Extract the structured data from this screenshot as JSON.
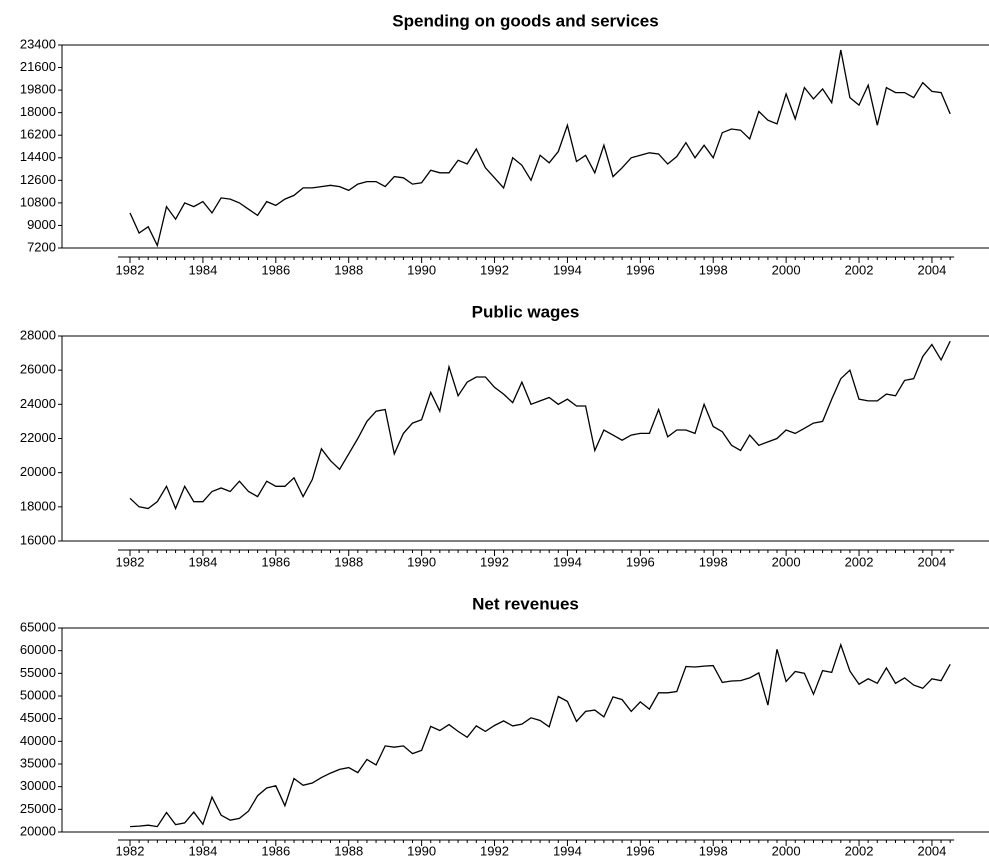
{
  "chart_data": [
    {
      "type": "line",
      "title": "Spending on goods and services",
      "color": "#000000",
      "categories": [
        "1982",
        null,
        null,
        null,
        null,
        null,
        null,
        null,
        "1984",
        null,
        null,
        null,
        null,
        null,
        null,
        null,
        "1986",
        null,
        null,
        null,
        null,
        null,
        null,
        null,
        "1988",
        null,
        null,
        null,
        null,
        null,
        null,
        null,
        "1990",
        null,
        null,
        null,
        null,
        null,
        null,
        null,
        "1992",
        null,
        null,
        null,
        null,
        null,
        null,
        null,
        "1994",
        null,
        null,
        null,
        null,
        null,
        null,
        null,
        "1996",
        null,
        null,
        null,
        null,
        null,
        null,
        null,
        "1998",
        null,
        null,
        null,
        null,
        null,
        null,
        null,
        "2000",
        null,
        null,
        null,
        null,
        null,
        null,
        null,
        "2002",
        null,
        null,
        null,
        null,
        null,
        null,
        null,
        "2004",
        null,
        null
      ],
      "values": [
        10000,
        8400,
        8900,
        7400,
        10500,
        9500,
        10800,
        10500,
        10900,
        10000,
        11200,
        11100,
        10800,
        10300,
        9800,
        10900,
        10600,
        11100,
        11400,
        12000,
        12000,
        12100,
        12200,
        12100,
        11800,
        12300,
        12500,
        12500,
        12100,
        12900,
        12800,
        12300,
        12400,
        13400,
        13200,
        13200,
        14200,
        13900,
        15100,
        13600,
        12800,
        12000,
        14400,
        13800,
        12600,
        14600,
        14000,
        14900,
        17000,
        14100,
        14600,
        13200,
        15400,
        12900,
        13600,
        14400,
        14600,
        14800,
        14700,
        13900,
        14500,
        15600,
        14400,
        15400,
        14400,
        16400,
        16700,
        16600,
        15900,
        18100,
        17400,
        17100,
        19500,
        17500,
        20000,
        19100,
        19900,
        18800,
        23000,
        19200,
        18600,
        20200,
        17000,
        20000,
        19600,
        19600,
        19200,
        20400,
        19700,
        19600,
        17900
      ],
      "ylim": [
        7200,
        23400
      ],
      "yticks": [
        7200,
        9000,
        10800,
        12600,
        14400,
        16200,
        18000,
        19800,
        21600,
        23400
      ]
    },
    {
      "type": "line",
      "title": "Public wages",
      "color": "#000000",
      "categories": [
        "1982",
        null,
        null,
        null,
        null,
        null,
        null,
        null,
        "1984",
        null,
        null,
        null,
        null,
        null,
        null,
        null,
        "1986",
        null,
        null,
        null,
        null,
        null,
        null,
        null,
        "1988",
        null,
        null,
        null,
        null,
        null,
        null,
        null,
        "1990",
        null,
        null,
        null,
        null,
        null,
        null,
        null,
        "1992",
        null,
        null,
        null,
        null,
        null,
        null,
        null,
        "1994",
        null,
        null,
        null,
        null,
        null,
        null,
        null,
        "1996",
        null,
        null,
        null,
        null,
        null,
        null,
        null,
        "1998",
        null,
        null,
        null,
        null,
        null,
        null,
        null,
        "2000",
        null,
        null,
        null,
        null,
        null,
        null,
        null,
        "2002",
        null,
        null,
        null,
        null,
        null,
        null,
        null,
        "2004",
        null,
        null
      ],
      "values": [
        18500,
        18000,
        17900,
        18300,
        19200,
        17900,
        19200,
        18300,
        18300,
        18900,
        19100,
        18900,
        19500,
        18900,
        18600,
        19500,
        19200,
        19200,
        19700,
        18600,
        19600,
        21400,
        20700,
        20200,
        21100,
        22000,
        23000,
        23600,
        23700,
        21100,
        22300,
        22900,
        23100,
        24700,
        23600,
        26200,
        24500,
        25300,
        25600,
        25600,
        25000,
        24600,
        24100,
        25300,
        24000,
        24200,
        24400,
        24000,
        24300,
        23900,
        23900,
        21300,
        22500,
        22200,
        21900,
        22200,
        22300,
        22300,
        23700,
        22100,
        22500,
        22500,
        22300,
        24000,
        22700,
        22400,
        21600,
        21300,
        22200,
        21600,
        21800,
        22000,
        22500,
        22300,
        22600,
        22900,
        23000,
        24300,
        25500,
        26000,
        24300,
        24200,
        24200,
        24600,
        24500,
        25400,
        25500,
        26800,
        27500,
        26600,
        27700
      ],
      "ylim": [
        16000,
        28000
      ],
      "yticks": [
        16000,
        18000,
        20000,
        22000,
        24000,
        26000,
        28000
      ]
    },
    {
      "type": "line",
      "title": "Net revenues",
      "color": "#000000",
      "categories": [
        "1982",
        null,
        null,
        null,
        null,
        null,
        null,
        null,
        "1984",
        null,
        null,
        null,
        null,
        null,
        null,
        null,
        "1986",
        null,
        null,
        null,
        null,
        null,
        null,
        null,
        "1988",
        null,
        null,
        null,
        null,
        null,
        null,
        null,
        "1990",
        null,
        null,
        null,
        null,
        null,
        null,
        null,
        "1992",
        null,
        null,
        null,
        null,
        null,
        null,
        null,
        "1994",
        null,
        null,
        null,
        null,
        null,
        null,
        null,
        "1996",
        null,
        null,
        null,
        null,
        null,
        null,
        null,
        "1998",
        null,
        null,
        null,
        null,
        null,
        null,
        null,
        "2000",
        null,
        null,
        null,
        null,
        null,
        null,
        null,
        "2002",
        null,
        null,
        null,
        null,
        null,
        null,
        null,
        "2004",
        null,
        null
      ],
      "values": [
        21200,
        21300,
        21500,
        21200,
        24300,
        21600,
        22000,
        24400,
        21700,
        27700,
        23700,
        22600,
        23000,
        24600,
        28000,
        29700,
        30200,
        25800,
        31800,
        30300,
        30800,
        32000,
        33000,
        33800,
        34200,
        33100,
        36000,
        34800,
        39000,
        38700,
        39000,
        37300,
        38000,
        43300,
        42400,
        43700,
        42200,
        40900,
        43400,
        42200,
        43500,
        44500,
        43400,
        43800,
        45200,
        44600,
        43200,
        49900,
        48800,
        44400,
        46600,
        46900,
        45400,
        49800,
        49200,
        46600,
        48700,
        47100,
        50700,
        50700,
        51000,
        56500,
        56400,
        56600,
        56700,
        53000,
        53300,
        53400,
        54000,
        55100,
        48000,
        60300,
        53200,
        55400,
        55000,
        50400,
        55600,
        55200,
        61300,
        55500,
        52600,
        53800,
        52800,
        56200,
        52800,
        54000,
        52400,
        51700,
        53800,
        53400,
        57000
      ],
      "ylim": [
        20000,
        65000
      ],
      "yticks": [
        20000,
        25000,
        30000,
        35000,
        40000,
        45000,
        50000,
        55000,
        60000,
        65000
      ]
    }
  ]
}
